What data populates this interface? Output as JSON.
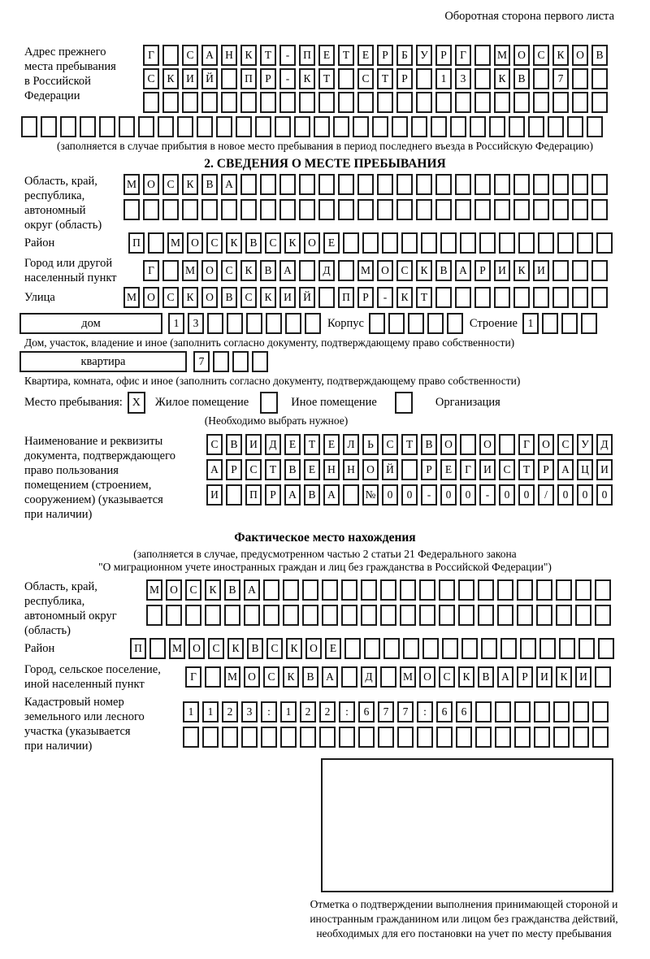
{
  "page": {
    "header_note": "Оборотная сторона первого листа"
  },
  "prev_address": {
    "label": "Адрес прежнего\nместа пребывания\nв Российской\nФедерации",
    "row1": {
      "chars": "Г САНКТ-ПЕТЕРБУРГ МОСКОВ",
      "length": 24
    },
    "row2": {
      "chars": "СКИЙ ПР-КТ СТР 13 КВ 7",
      "length": 24
    },
    "row3": {
      "chars": "",
      "length": 24
    },
    "row4": {
      "chars": "",
      "length": 30
    },
    "note": "(заполняется в случае прибытия в новое место пребывания в период последнего въезда в Российскую Федерацию)"
  },
  "section2": {
    "title": "2. СВЕДЕНИЯ О МЕСТЕ ПРЕБЫВАНИЯ",
    "oblast": {
      "label": "Область, край,\nреспублика,\nавтономный\nокруг (область)",
      "row1": {
        "chars": "МОСКВА",
        "length": 25
      },
      "row2": {
        "chars": "",
        "length": 25
      }
    },
    "raion": {
      "label": "Район",
      "row": {
        "chars": "П МОСКВСКОЕ",
        "length": 25
      }
    },
    "gorod": {
      "label": "Город или другой\nнаселенный пункт",
      "row": {
        "chars": "Г МОСКВА Д МОСКВАРИКИ",
        "length": 24
      }
    },
    "ulitsa": {
      "label": "Улица",
      "row": {
        "chars": "МОСКОВСКИЙ ПР-КТ",
        "length": 25
      }
    },
    "dom": {
      "box_label": "дом",
      "cells": {
        "chars": "13",
        "length": 8
      },
      "korpus_label": "Корпус",
      "korpus_cells": {
        "chars": "",
        "length": 5
      },
      "stroenie_label": "Строение",
      "stroenie_cells": {
        "chars": "1",
        "length": 4
      },
      "note": "Дом, участок, владение и иное (заполнить согласно документу, подтверждающему право собственности)"
    },
    "kvartira": {
      "box_label": "квартира",
      "cells": {
        "chars": "7",
        "length": 4
      },
      "note": "Квартира, комната, офис и иное (заполнить согласно документу, подтверждающему право собственности)"
    },
    "mesto": {
      "label": "Место пребывания:",
      "options": [
        {
          "label": "Жилое помещение",
          "mark": "X"
        },
        {
          "label": "Иное помещение",
          "mark": ""
        },
        {
          "label": "Организация",
          "mark": ""
        }
      ],
      "note": "(Необходимо выбрать нужное)"
    },
    "document": {
      "label": "Наименование и реквизиты\nдокумента, подтверждающего\nправо пользования\nпомещением (строением,\nсооружением) (указывается\nпри наличии)",
      "row1": {
        "chars": "СВИДЕТЕЛЬСТВО О ГОСУД",
        "length": 21
      },
      "row2": {
        "chars": "АРСТВЕННОЙ РЕГИСТРАЦИ",
        "length": 21
      },
      "row3": {
        "chars": "И ПРАВА №00-00-00/000",
        "length": 21
      }
    }
  },
  "fact": {
    "title": "Фактическое место нахождения",
    "note1": "(заполняется в случае, предусмотренном частью 2 статьи 21 Федерального закона",
    "note2": "\"О миграционном учете иностранных граждан и лиц без гражданства в Российской Федерации\")",
    "oblast": {
      "label": "Область, край,\nреспублика,\nавтономный округ\n(область)",
      "row1": {
        "chars": "МОСКВА",
        "length": 24
      },
      "row2": {
        "chars": "",
        "length": 24
      }
    },
    "raion": {
      "label": "Район",
      "row": {
        "chars": "П МОСКВСКОЕ",
        "length": 25
      }
    },
    "gorod": {
      "label": "Город, сельское поселение,\nиной населенный пункт",
      "row": {
        "chars": "Г МОСКВА Д МОСКВАРИКИ",
        "length": 22
      }
    },
    "kadastr": {
      "label": "Кадастровый номер\nземельного или лесного\nучастка (указывается\nпри наличии)",
      "row1": {
        "chars": "1123:122:677:66",
        "length": 22
      },
      "row2": {
        "chars": "",
        "length": 22
      }
    },
    "stamp_note": "Отметка о подтверждении выполнения принимающей стороной и иностранным гражданином или лицом без гражданства действий, необходимых для его постановки на учет по месту пребывания"
  }
}
